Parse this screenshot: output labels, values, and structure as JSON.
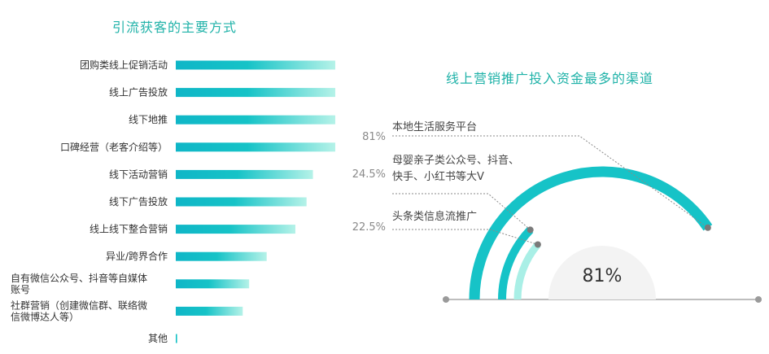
{
  "colors": {
    "accent": "#16c3c7",
    "bar_dark": "#0fb6c7",
    "bar_light": "#a9efe6",
    "title": "#1fb2a8",
    "baseline": "#a8a8a8"
  },
  "chart_data": [
    {
      "type": "bar",
      "orientation": "horizontal",
      "title": "引流获客的主要方式",
      "categories": [
        "团购类线上促销活动",
        "线上广告投放",
        "线下地推",
        "口碑经营（老客介绍等）",
        "线下活动营销",
        "线下广告投放",
        "线上线下整合营销",
        "异业/跨界合作",
        "自有微信公众号、抖音等自媒体账号",
        "社群营销（创建微信群、联络微信微博达人等）",
        "其他"
      ],
      "label_lines": [
        [
          "团购类线上促销活动"
        ],
        [
          "线上广告投放"
        ],
        [
          "线下地推"
        ],
        [
          "口碑经营（老客介绍等）"
        ],
        [
          "线下活动营销"
        ],
        [
          "线下广告投放"
        ],
        [
          "线上线下整合营销"
        ],
        [
          "异业/跨界合作"
        ],
        [
          "自有微信公众号、抖音等自媒体",
          "账号"
        ],
        [
          "社群营销（创建微信群、联络微",
          "信微博达人等）"
        ],
        [
          "其他"
        ]
      ],
      "values": [
        100,
        100,
        100,
        100,
        86,
        82,
        75,
        57,
        46,
        42,
        1
      ],
      "xlim": [
        0,
        100
      ]
    },
    {
      "type": "radial_bar",
      "title": "线上营销推广投入资金最多的渠道",
      "center_label": "81%",
      "series": [
        {
          "name": "本地生活服务平台",
          "value": 81,
          "value_label": "81%"
        },
        {
          "name_lines": [
            "母婴亲子类公众号、抖音、",
            "快手、小红书等大V"
          ],
          "value": 24.5,
          "value_label": "24.5%"
        },
        {
          "name": "头条类信息流推广",
          "value": 22.5,
          "value_label": "22.5%"
        }
      ],
      "ylim": [
        0,
        100
      ]
    }
  ]
}
